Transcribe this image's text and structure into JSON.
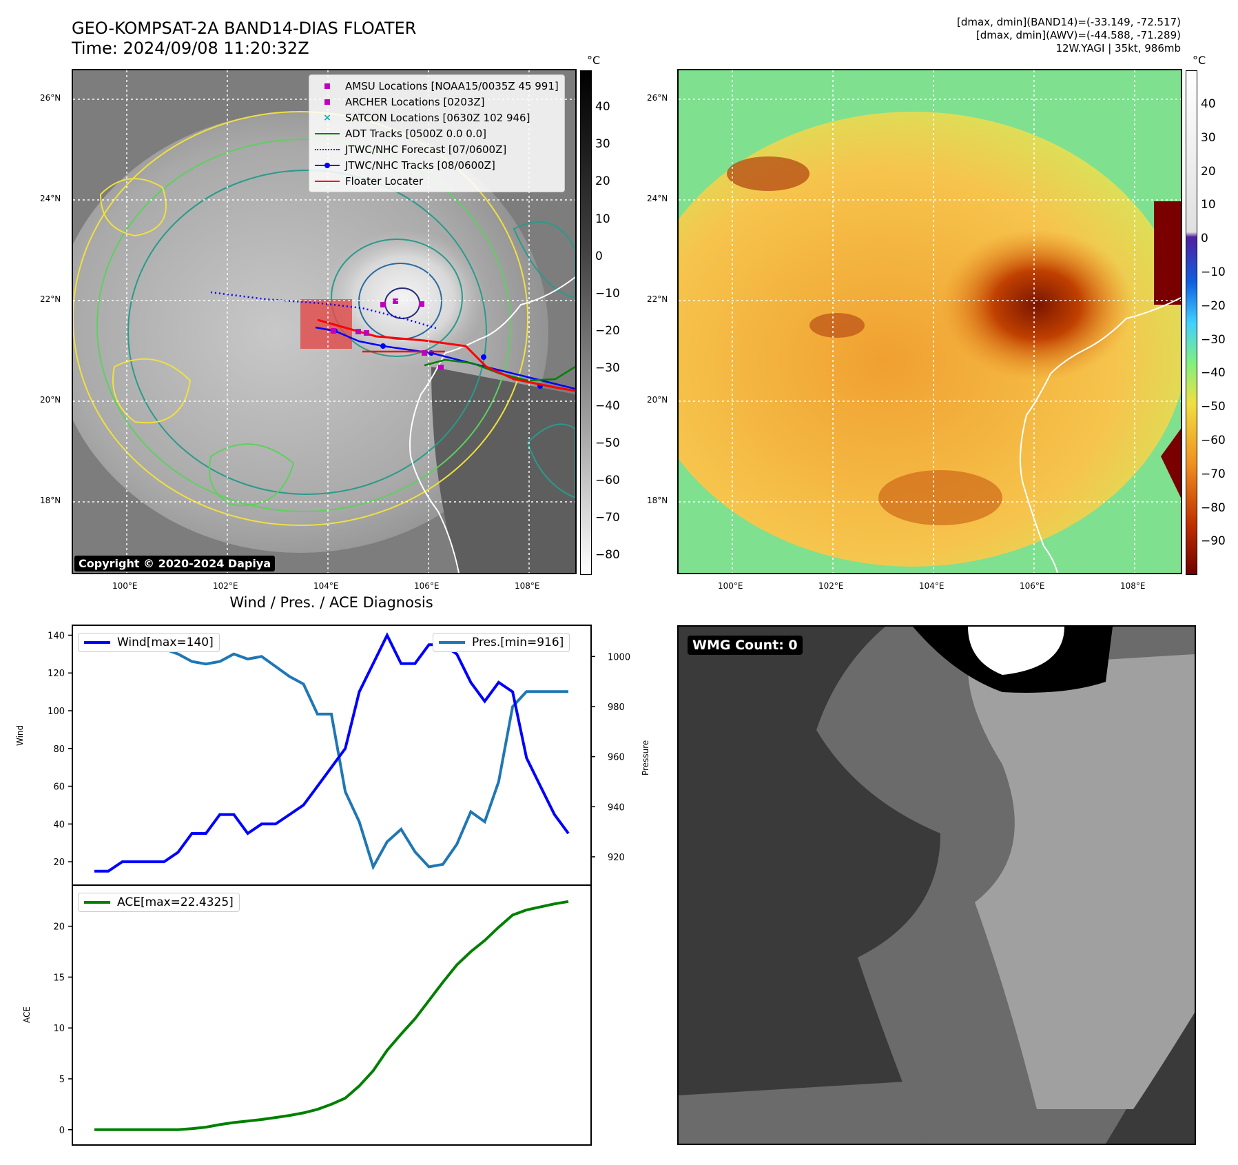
{
  "header": {
    "title_line1": "GEO-KOMPSAT-2A BAND14-DIAS FLOATER",
    "title_line2": "Time: 2024/09/08 11:20:32Z",
    "info_line1": "[dmax, dmin](BAND14)=(-33.149, -72.517)",
    "info_line2": "[dmax, dmin](AWV)=(-44.588, -71.289)",
    "info_line3": "12W.YAGI | 35kt, 986mb"
  },
  "maps": {
    "lat_labels": [
      "26°N",
      "24°N",
      "22°N",
      "20°N",
      "18°N"
    ],
    "lon_labels": [
      "100°E",
      "102°E",
      "104°E",
      "106°E",
      "108°E"
    ],
    "copyright": "Copyright © 2020-2024 Dapiya",
    "left_colorbar": {
      "unit": "°C",
      "ticks": [
        "40",
        "30",
        "20",
        "10",
        "0",
        "−10",
        "−20",
        "−30",
        "−40",
        "−50",
        "−60",
        "−70",
        "−80"
      ]
    },
    "right_colorbar": {
      "unit": "°C",
      "ticks": [
        "40",
        "30",
        "20",
        "10",
        "0",
        "−10",
        "−20",
        "−30",
        "−40",
        "−50",
        "−60",
        "−70",
        "−80",
        "−90"
      ]
    },
    "legend": [
      {
        "label": "AMSU Locations [NOAA15/0035Z 45 991]",
        "color": "#c000c0",
        "kind": "square"
      },
      {
        "label": "ARCHER Locations [0203Z]",
        "color": "#c000c0",
        "kind": "square"
      },
      {
        "label": "SATCON Locations [0630Z 102 946]",
        "color": "#00b0b0",
        "kind": "x"
      },
      {
        "label": "ADT Tracks [0500Z 0.0 0.0]",
        "color": "#008000",
        "kind": "line"
      },
      {
        "label": "JTWC/NHC Forecast [07/0600Z]",
        "color": "#0000ff",
        "kind": "dotted"
      },
      {
        "label": "JTWC/NHC Tracks [08/0600Z]",
        "color": "#0000ff",
        "kind": "dotline"
      },
      {
        "label": "Floater Locater",
        "color": "#ff0000",
        "kind": "line"
      }
    ]
  },
  "diagnosis": {
    "title": "Wind / Pres. / ACE Diagnosis",
    "wind_label": "Wind",
    "pressure_label": "Pressure",
    "ace_label": "ACE",
    "wind_legend": "Wind[max=140]",
    "pres_legend": "Pres.[min=916]",
    "ace_legend": "ACE[max=22.4325]",
    "wmg_label": "WMG Count: 0"
  },
  "chart_data": [
    {
      "type": "line",
      "title": "Wind / Pres. / ACE Diagnosis",
      "ylabel": "Wind",
      "ylim": [
        12,
        142
      ],
      "yticks": [
        20,
        40,
        60,
        80,
        100,
        120,
        140
      ],
      "x": [
        0,
        1,
        2,
        3,
        4,
        5,
        6,
        7,
        8,
        9,
        10,
        11,
        12,
        13,
        14,
        15,
        16,
        17,
        18,
        19,
        20,
        21,
        22,
        23,
        24,
        25,
        26,
        27,
        28,
        29,
        30,
        31,
        32,
        33,
        34
      ],
      "series": [
        {
          "name": "Wind[max=140]",
          "color": "#0000ff",
          "values": [
            15,
            15,
            20,
            20,
            20,
            20,
            25,
            35,
            35,
            45,
            45,
            35,
            40,
            40,
            45,
            50,
            60,
            70,
            80,
            110,
            125,
            140,
            125,
            125,
            135,
            135,
            130,
            115,
            105,
            115,
            110,
            75,
            60,
            45,
            35
          ]
        }
      ]
    },
    {
      "type": "line",
      "ylabel": "Pressure",
      "ylim": [
        912,
        1010
      ],
      "yticks": [
        920,
        940,
        960,
        980,
        1000
      ],
      "x": [
        0,
        1,
        2,
        3,
        4,
        5,
        6,
        7,
        8,
        9,
        10,
        11,
        12,
        13,
        14,
        15,
        16,
        17,
        18,
        19,
        20,
        21,
        22,
        23,
        24,
        25,
        26,
        27,
        28,
        29,
        30,
        31,
        32,
        33,
        34
      ],
      "series": [
        {
          "name": "Pres.[min=916]",
          "color": "#1f77b4",
          "values": [
            1006,
            1006,
            1005,
            1005,
            1003,
            1003,
            1001,
            998,
            997,
            998,
            1001,
            999,
            1000,
            996,
            992,
            989,
            977,
            977,
            946,
            934,
            916,
            926,
            931,
            922,
            916,
            917,
            925,
            938,
            934,
            950,
            980,
            986,
            986,
            986,
            986
          ]
        }
      ]
    },
    {
      "type": "line",
      "ylabel": "ACE",
      "ylim": [
        -1.1,
        23.5
      ],
      "yticks": [
        0,
        5,
        10,
        15,
        20
      ],
      "x": [
        0,
        1,
        2,
        3,
        4,
        5,
        6,
        7,
        8,
        9,
        10,
        11,
        12,
        13,
        14,
        15,
        16,
        17,
        18,
        19,
        20,
        21,
        22,
        23,
        24,
        25,
        26,
        27,
        28,
        29,
        30,
        31,
        32,
        33,
        34
      ],
      "series": [
        {
          "name": "ACE[max=22.4325]",
          "color": "#008000",
          "values": [
            0,
            0,
            0,
            0,
            0,
            0,
            0,
            0.1,
            0.25,
            0.5,
            0.7,
            0.85,
            1.0,
            1.2,
            1.4,
            1.65,
            2.0,
            2.5,
            3.1,
            4.3,
            5.8,
            7.8,
            9.4,
            10.9,
            12.7,
            14.5,
            16.2,
            17.5,
            18.6,
            19.9,
            21.1,
            21.6,
            21.9,
            22.2,
            22.43
          ]
        }
      ]
    }
  ]
}
